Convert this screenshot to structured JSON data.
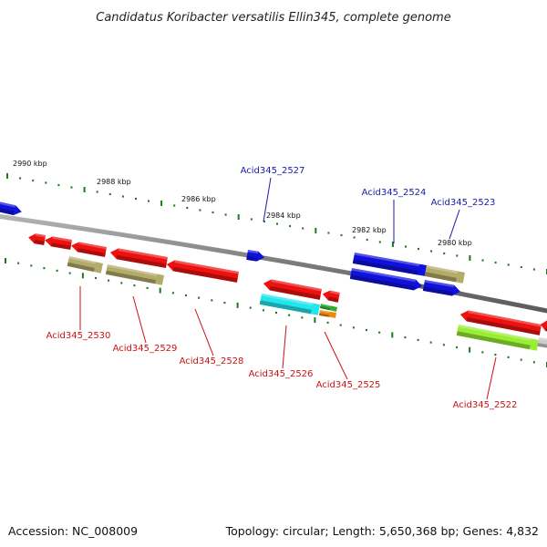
{
  "title": "Candidatus Koribacter versatilis Ellin345, complete genome",
  "scale_labels": [
    "2990 kbp",
    "2988 kbp",
    "2986 kbp",
    "2984 kbp",
    "2982 kbp",
    "2980 kbp"
  ],
  "gene_labels": {
    "forward": [
      "Acid345_2527",
      "Acid345_2524",
      "Acid345_2523"
    ],
    "reverse": [
      "Acid345_2530",
      "Acid345_2529",
      "Acid345_2528",
      "Acid345_2526",
      "Acid345_2525",
      "Acid345_2522"
    ]
  },
  "footer": {
    "accession": "Accession: NC_008009",
    "summary": "Topology: circular; Length: 5,650,368 bp; Genes: 4,832"
  },
  "colors": {
    "forward_label": "#1a1aa8",
    "reverse_label": "#cc1111",
    "backbone": "#8a8a8a",
    "tick": "#1f7a1f",
    "gene_red": "#ee1111",
    "gene_blue": "#1111dd",
    "gene_khaki": "#b3ab6a",
    "gene_cyan": "#22e5ee",
    "gene_lime": "#99ee33",
    "gene_green": "#33aa33",
    "gene_orange": "#ee8811"
  }
}
